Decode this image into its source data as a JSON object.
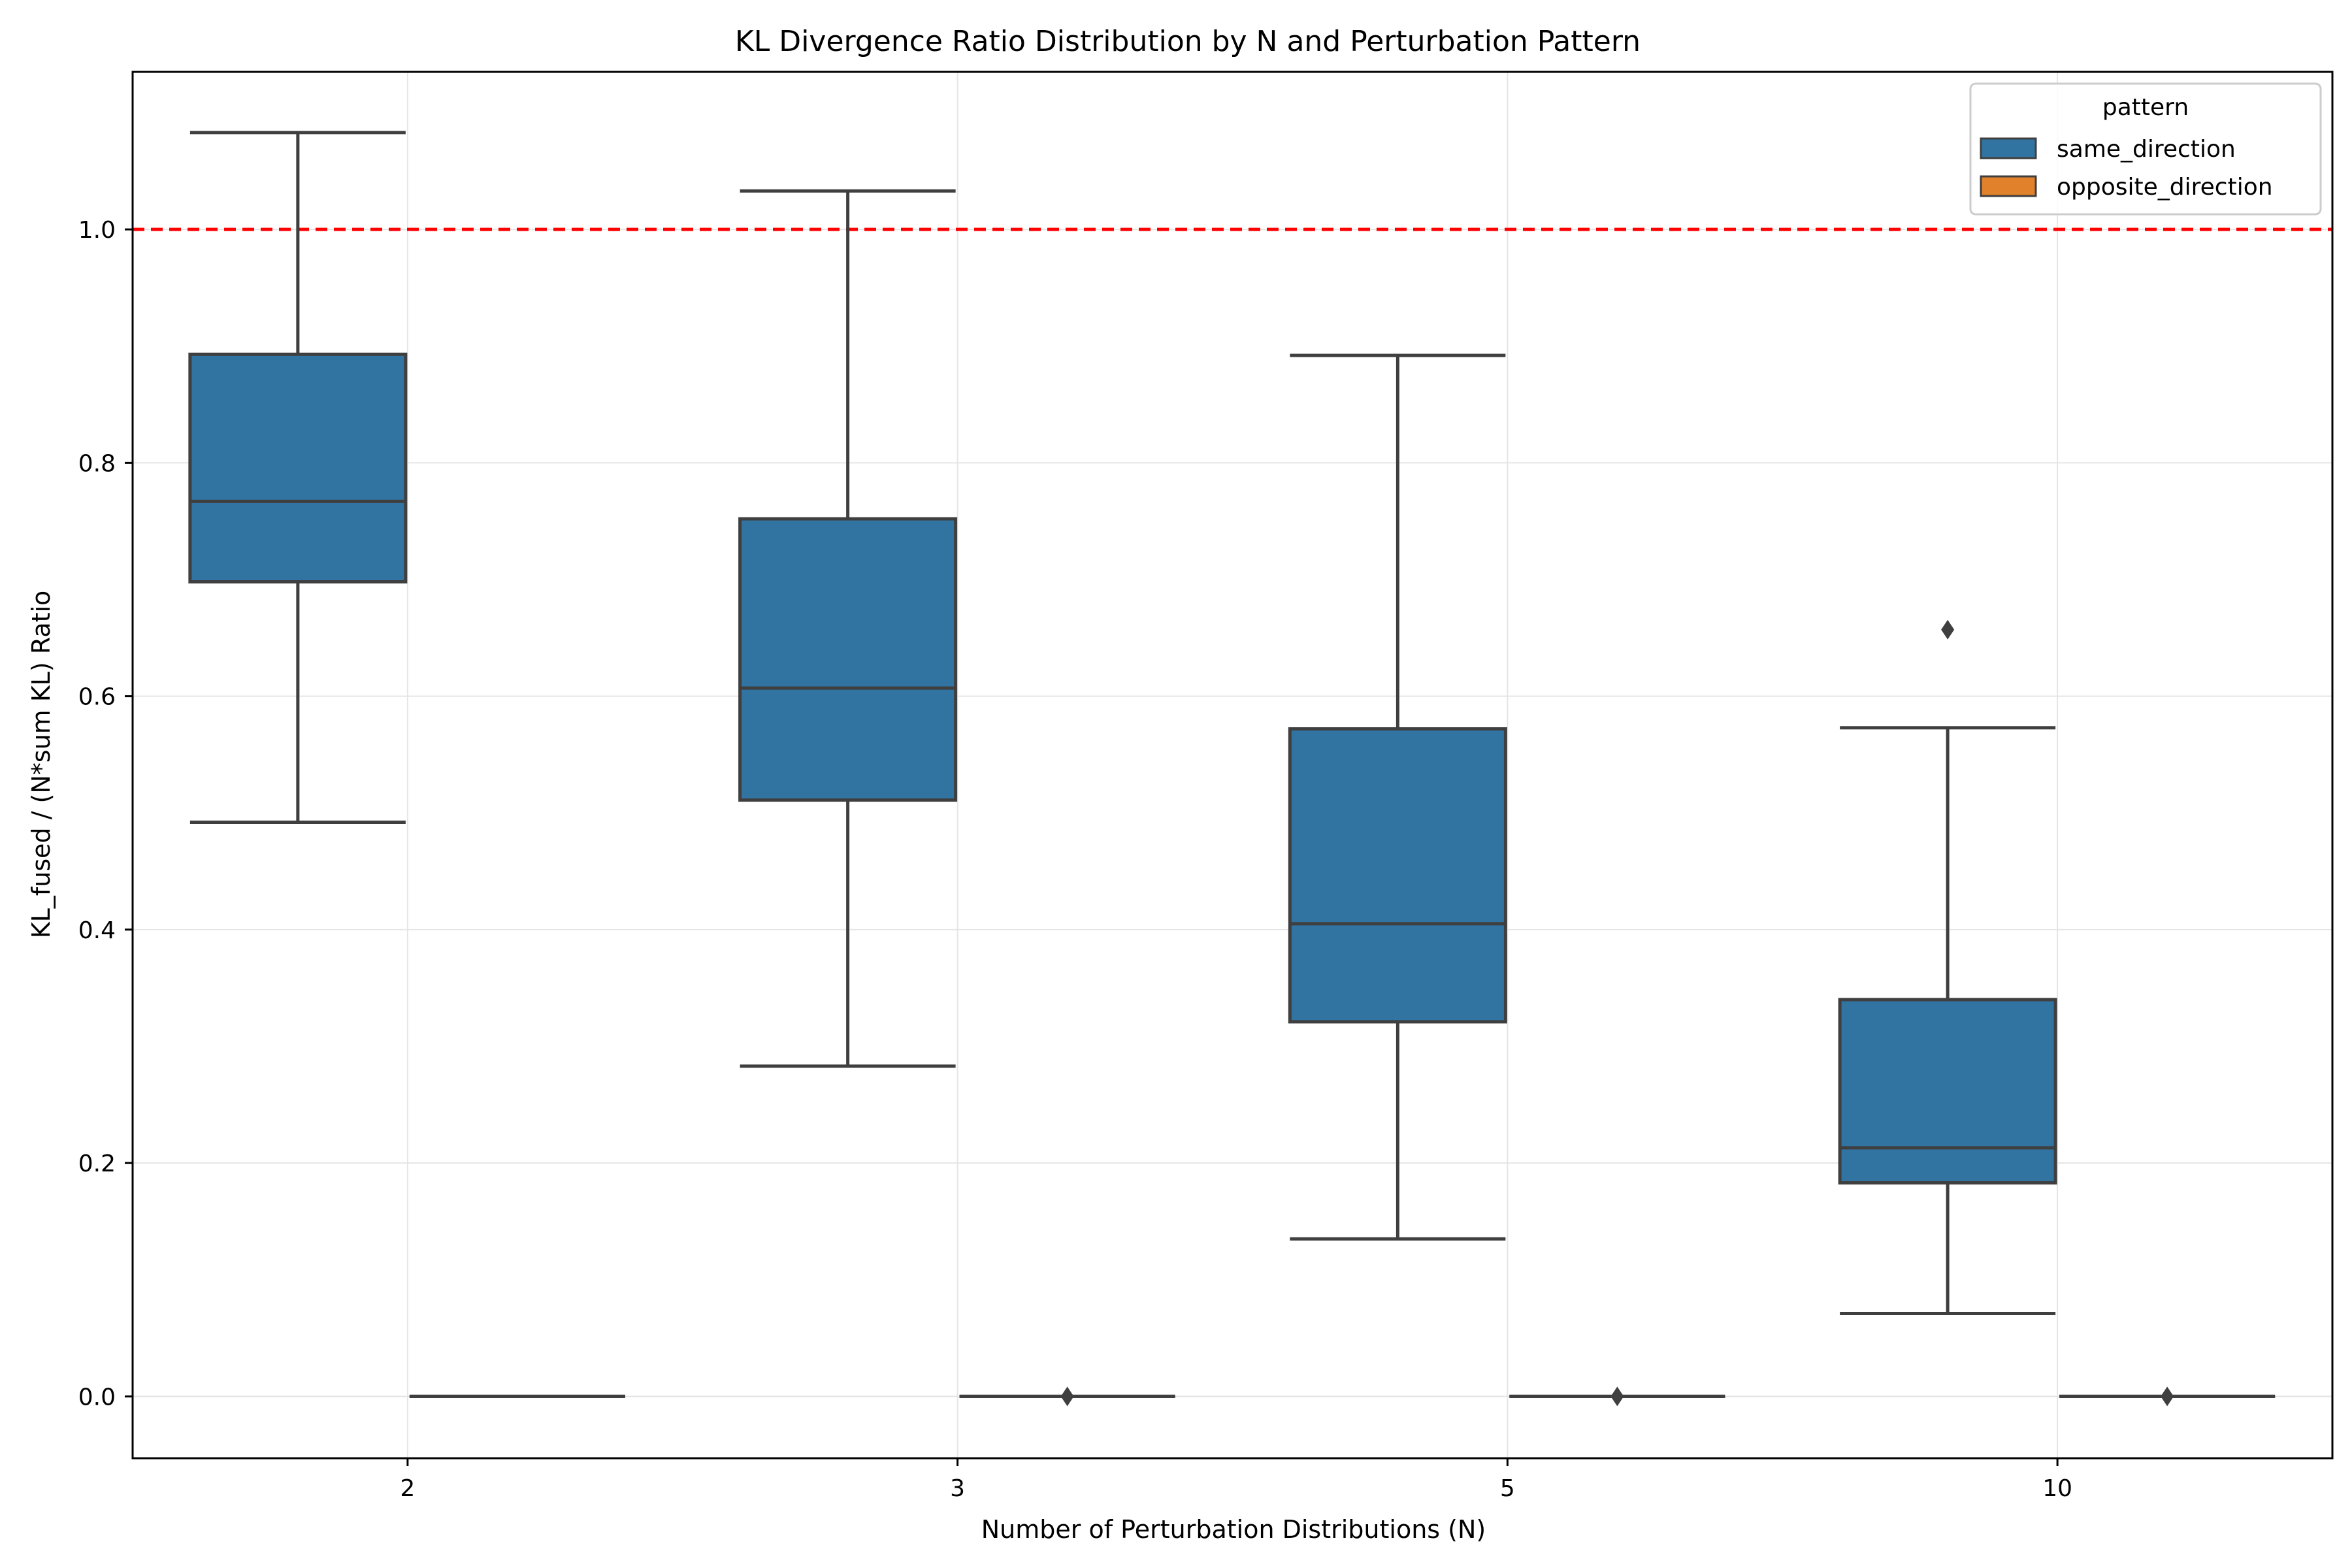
{
  "chart_data": {
    "type": "box",
    "title": "KL Divergence Ratio Distribution by N and Perturbation Pattern",
    "xlabel": "Number of Perturbation Distributions (N)",
    "ylabel": "KL_fused / (N*sum KL) Ratio",
    "categories": [
      "2",
      "3",
      "5",
      "10"
    ],
    "ylim": [
      -0.053,
      1.135
    ],
    "yticks": [
      0.0,
      0.2,
      0.4,
      0.6,
      0.8,
      1.0
    ],
    "ytick_labels": [
      "0.0",
      "0.2",
      "0.4",
      "0.6",
      "0.8",
      "1.0"
    ],
    "grid": true,
    "reference_line": {
      "y": 1.0,
      "color": "#ff0000",
      "style": "dashed"
    },
    "legend": {
      "title": "pattern",
      "position": "top-right"
    },
    "series": [
      {
        "name": "same_direction",
        "color": "#3274a1",
        "boxes": [
          {
            "whisker_low": 0.492,
            "q1": 0.698,
            "median": 0.767,
            "q3": 0.893,
            "whisker_high": 1.083,
            "outliers": []
          },
          {
            "whisker_low": 0.283,
            "q1": 0.511,
            "median": 0.607,
            "q3": 0.752,
            "whisker_high": 1.033,
            "outliers": []
          },
          {
            "whisker_low": 0.135,
            "q1": 0.321,
            "median": 0.405,
            "q3": 0.572,
            "whisker_high": 0.892,
            "outliers": []
          },
          {
            "whisker_low": 0.071,
            "q1": 0.183,
            "median": 0.213,
            "q3": 0.34,
            "whisker_high": 0.573,
            "outliers": [
              0.657
            ]
          }
        ]
      },
      {
        "name": "opposite_direction",
        "color": "#e1812c",
        "boxes": [
          {
            "whisker_low": 0.0,
            "q1": 0.0,
            "median": 0.0,
            "q3": 0.0,
            "whisker_high": 0.0,
            "outliers": []
          },
          {
            "whisker_low": 0.0,
            "q1": 0.0,
            "median": 0.0,
            "q3": 0.0,
            "whisker_high": 0.0,
            "outliers": [
              0.0
            ]
          },
          {
            "whisker_low": 0.0,
            "q1": 0.0,
            "median": 0.0,
            "q3": 0.0,
            "whisker_high": 0.0,
            "outliers": [
              0.0
            ]
          },
          {
            "whisker_low": 0.0,
            "q1": 0.0,
            "median": 0.0,
            "q3": 0.0,
            "whisker_high": 0.0,
            "outliers": [
              0.0
            ]
          }
        ]
      }
    ]
  }
}
